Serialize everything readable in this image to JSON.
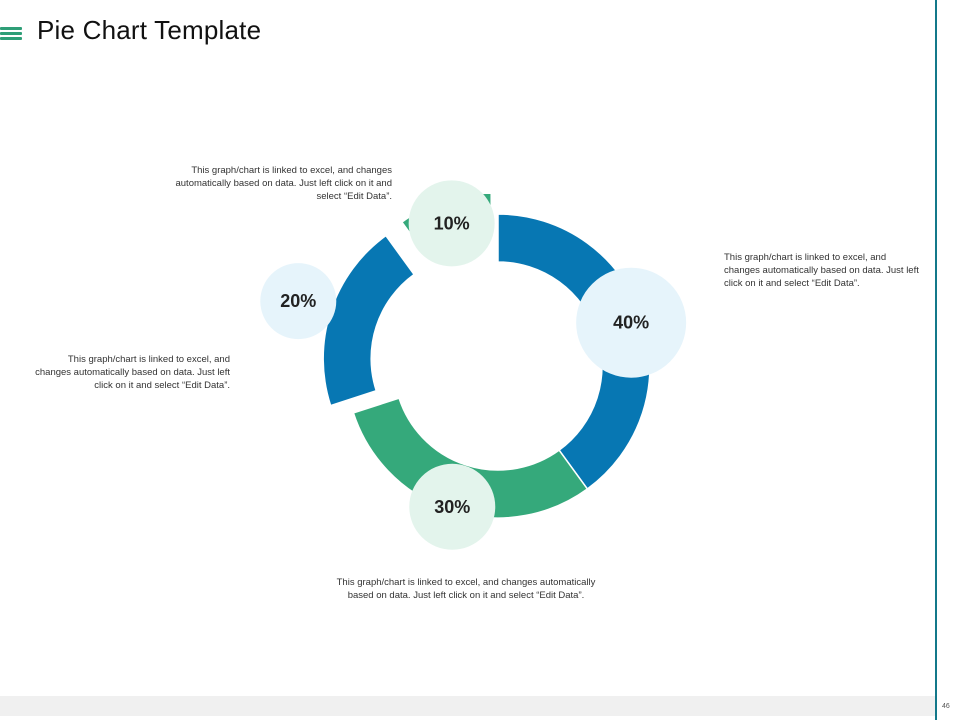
{
  "slide": {
    "title": "Pie Chart Template",
    "page_number": "46"
  },
  "icons": {
    "menu": "hamburger-menu-icon"
  },
  "colors": {
    "blue": "#0777b3",
    "green": "#35a97b",
    "light_blue_bubble": "#e6f4fb",
    "light_green_bubble": "#e3f4ec",
    "accent_rule": "#13788a"
  },
  "chart_data": {
    "type": "pie",
    "variant": "donut-exploded",
    "slices": [
      {
        "label": "40%",
        "value": 40,
        "color": "#0777b3"
      },
      {
        "label": "30%",
        "value": 30,
        "color": "#35a97b"
      },
      {
        "label": "20%",
        "value": 20,
        "color": "#0777b3"
      },
      {
        "label": "10%",
        "value": 10,
        "color": "#35a97b"
      }
    ],
    "annotations": {
      "slice_10": "This graph/chart is linked to excel, and changes automatically based on data. Just left click on it and select “Edit Data”.",
      "slice_40": "This graph/chart is linked to excel, and changes automatically based on data. Just left click on it and select “Edit Data”.",
      "slice_20": "This graph/chart is linked to excel, and changes automatically based on data. Just left click on it and select “Edit Data”.",
      "slice_30": "This graph/chart is linked to excel, and changes automatically based on data. Just left click on it and select “Edit Data”."
    }
  }
}
